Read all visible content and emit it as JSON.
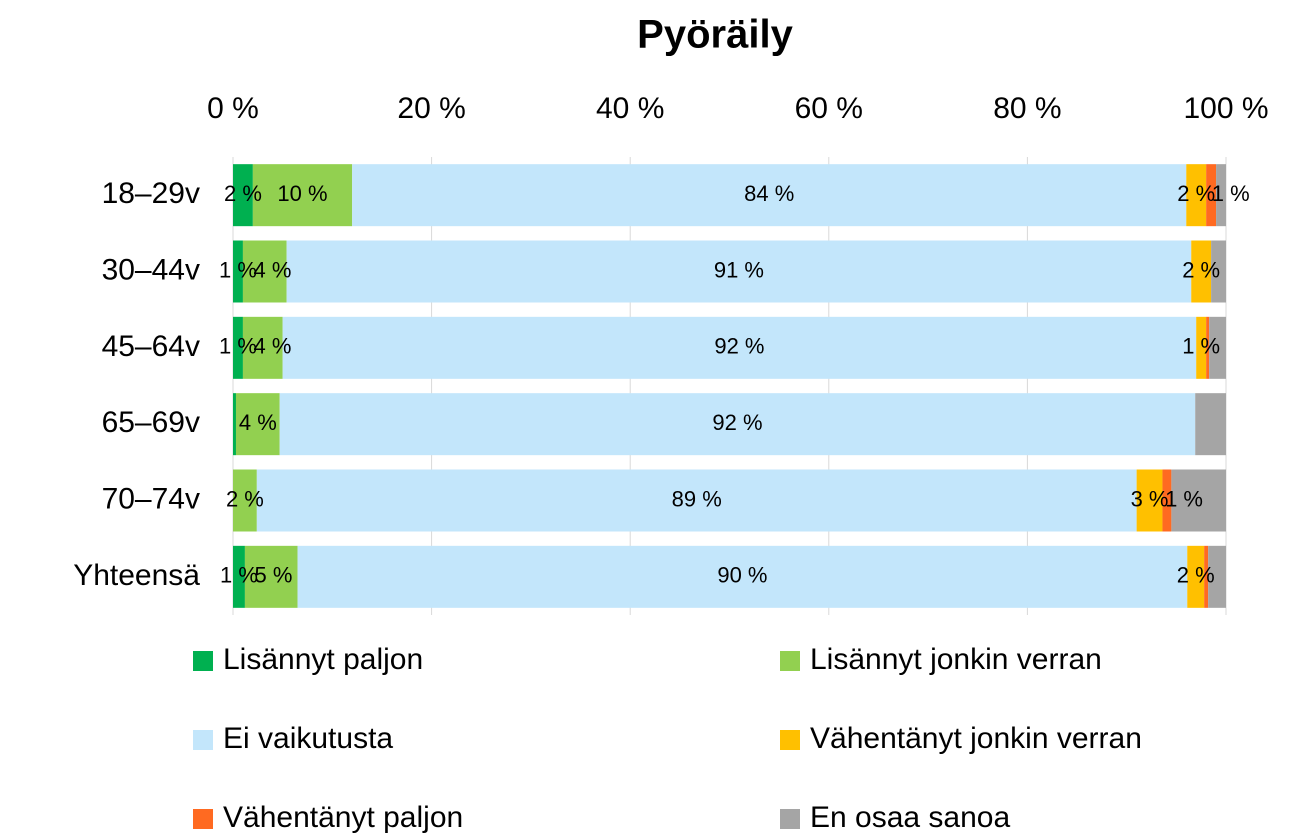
{
  "chart_data": {
    "type": "stacked_barh",
    "title": "Pyöräily",
    "categories": [
      "18–29v",
      "30–44v",
      "45–64v",
      "65–69v",
      "70–74v",
      "Yhteensä"
    ],
    "xlim": [
      0,
      100
    ],
    "xticks": [
      {
        "value": 0,
        "label": "0 %"
      },
      {
        "value": 20,
        "label": "20 %"
      },
      {
        "value": 40,
        "label": "40 %"
      },
      {
        "value": 60,
        "label": "60 %"
      },
      {
        "value": 80,
        "label": "80 %"
      },
      {
        "value": 100,
        "label": "100 %"
      }
    ],
    "grid": true,
    "legend": "bottom",
    "series": [
      {
        "name": "Lisännyt paljon",
        "color": "#00b050",
        "values": [
          2,
          1,
          1,
          0.3,
          0,
          1.2
        ],
        "value_labels": [
          "2 %",
          "1 %",
          "1 %",
          null,
          null,
          "1 %"
        ]
      },
      {
        "name": "Lisännyt jonkin verran",
        "color": "#92d050",
        "values": [
          10,
          4.4,
          4,
          4.4,
          2.4,
          5.3
        ],
        "value_labels": [
          "10 %",
          "4 %",
          "4 %",
          "4 %",
          "2 %",
          "5 %"
        ]
      },
      {
        "name": "Ei vaikutusta",
        "color": "#c3e6fb",
        "values": [
          84,
          91.1,
          92,
          92.2,
          88.6,
          89.6
        ],
        "value_labels": [
          "84 %",
          "91 %",
          "92 %",
          "92 %",
          "89 %",
          "90 %"
        ]
      },
      {
        "name": "Vähentänyt jonkin verran",
        "color": "#ffc000",
        "values": [
          2,
          2,
          1,
          0,
          2.6,
          1.7
        ],
        "value_labels": [
          "2 %",
          "2 %",
          "1 %",
          null,
          "3 %",
          "2 %"
        ]
      },
      {
        "name": "Vähentänyt paljon",
        "color": "#ff6a21",
        "values": [
          1,
          0,
          0.3,
          0,
          0.9,
          0.4
        ],
        "value_labels": [
          null,
          null,
          null,
          null,
          "1 %",
          null
        ]
      },
      {
        "name": "En osaa sanoa",
        "color": "#a5a5a5",
        "values": [
          1,
          1.5,
          1.7,
          3.1,
          5.5,
          1.8
        ],
        "value_labels": [
          "1 %",
          null,
          null,
          null,
          null,
          null
        ]
      }
    ]
  }
}
